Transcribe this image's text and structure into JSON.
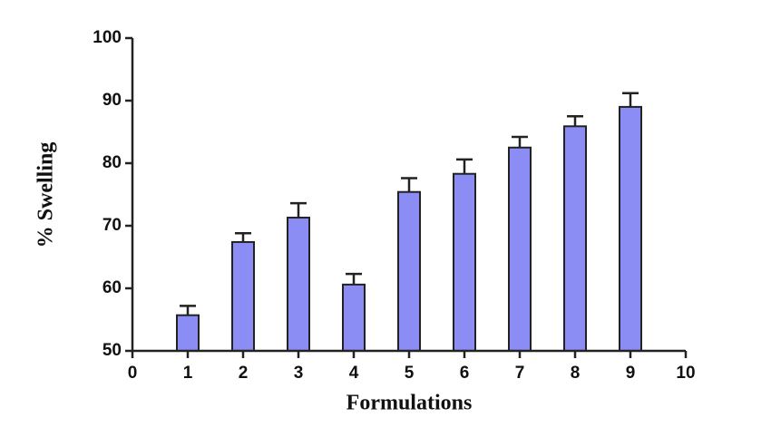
{
  "chart_data": {
    "type": "bar",
    "x_label": "Formulations",
    "y_label": "% Swelling",
    "x": [
      1,
      2,
      3,
      4,
      5,
      6,
      7,
      8,
      9
    ],
    "values": [
      55.7,
      67.4,
      71.3,
      60.6,
      75.4,
      78.3,
      82.5,
      85.9,
      89.0
    ],
    "errors": [
      1.5,
      1.4,
      2.3,
      1.7,
      2.2,
      2.3,
      1.7,
      1.6,
      2.2
    ],
    "color": "#8c8cf5",
    "xlim": [
      0,
      10
    ],
    "xticks": [
      0,
      1,
      2,
      3,
      4,
      5,
      6,
      7,
      8,
      9,
      10
    ],
    "ylim": [
      50,
      100
    ],
    "yticks": [
      50,
      60,
      70,
      80,
      90,
      100
    ]
  }
}
